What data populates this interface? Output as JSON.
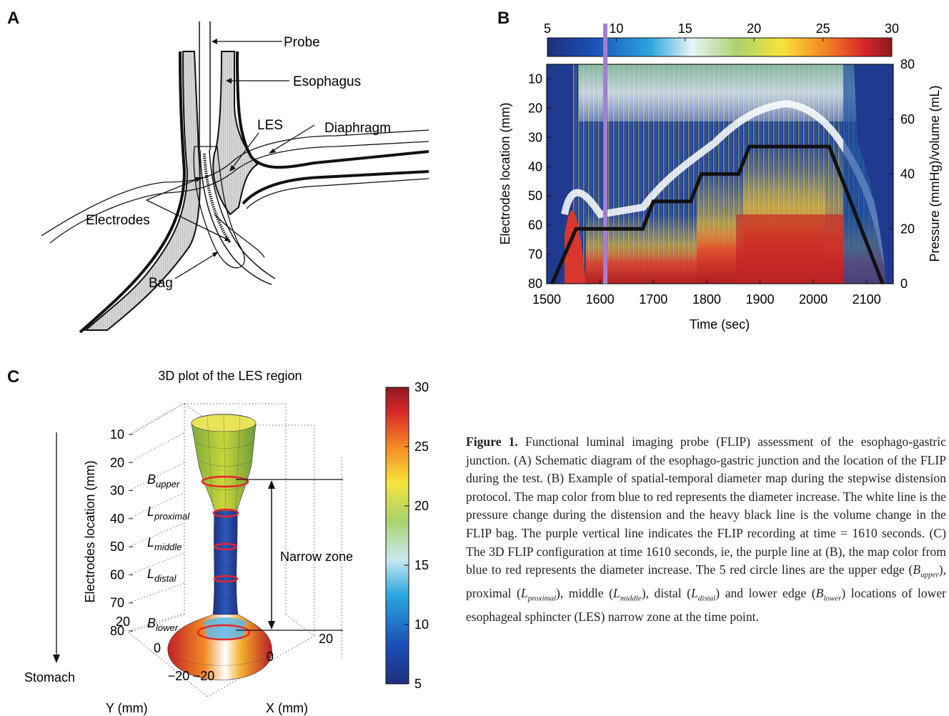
{
  "panels": {
    "a": "A",
    "b": "B",
    "c": "C"
  },
  "panel_a": {
    "labels": {
      "probe": "Probe",
      "esophagus": "Esophagus",
      "les": "LES",
      "diaphragm": "Diaphragm",
      "electrodes": "Electrodes",
      "bag": "Bag"
    }
  },
  "chart_data": [
    {
      "type": "heatmap",
      "panel": "B",
      "xlabel": "Time (sec)",
      "ylabel": "Electrodes location (mm)",
      "y2label": "Pressure (mmHg)/volume (mL)",
      "xlim": [
        1500,
        2150
      ],
      "ylim": [
        80,
        5
      ],
      "y2lim": [
        0,
        80
      ],
      "x_ticks": [
        "1500",
        "1600",
        "1700",
        "1800",
        "1900",
        "2000",
        "2100"
      ],
      "y_ticks": [
        "10",
        "20",
        "30",
        "40",
        "50",
        "60",
        "70",
        "80"
      ],
      "y2_ticks": [
        "0",
        "20",
        "40",
        "60",
        "80"
      ],
      "colorbar": {
        "range": [
          5,
          30
        ],
        "ticks": [
          "5",
          "10",
          "15",
          "20",
          "25",
          "30"
        ]
      },
      "marker_time": 1610,
      "volume_line": {
        "x": [
          1510,
          1555,
          1680,
          1700,
          1770,
          1790,
          1860,
          1880,
          2030,
          2130
        ],
        "y": [
          0,
          20,
          20,
          30,
          30,
          40,
          40,
          50,
          50,
          0
        ]
      }
    },
    {
      "type": "3d-surface",
      "panel": "C",
      "title": "3D plot of the LES region",
      "zlabel": "Electrodes location (mm)",
      "xlabel": "X (mm)",
      "ylabel": "Y (mm)",
      "z_ticks": [
        "10",
        "20",
        "30",
        "40",
        "50",
        "60",
        "70",
        "80"
      ],
      "x_ticks": [
        "−20",
        "0",
        "20"
      ],
      "y_ticks": [
        "−20",
        "0",
        "20"
      ],
      "colorbar": {
        "range": [
          5,
          30
        ],
        "ticks": [
          "5",
          "10",
          "15",
          "20",
          "25",
          "30"
        ]
      },
      "ring_labels": [
        {
          "main": "B",
          "sub": "upper"
        },
        {
          "main": "L",
          "sub": "proximal"
        },
        {
          "main": "L",
          "sub": "middle"
        },
        {
          "main": "L",
          "sub": "distal"
        },
        {
          "main": "B",
          "sub": "lower"
        }
      ],
      "annotations": {
        "narrow_zone": "Narrow zone",
        "stomach": "Stomach"
      }
    }
  ],
  "caption": {
    "label": "Figure 1.",
    "text": "Functional luminal imaging probe (FLIP) assessment of the esophago-gastric junction. (A) Schematic diagram of the esophago-gastric junction and the location of the FLIP during the test. (B) Example of spatial-temporal diameter map during the stepwise distension protocol. The map color from blue to red represents the diameter increase. The white line is the pressure change during the distension and the heavy black line is the volume change in the FLIP bag. The purple vertical line indicates the FLIP recording at time = 1610 seconds. (C) The 3D FLIP configuration at time 1610 seconds, ie, the purple line at (B), the map color from blue to red represents the diameter increase. The 5 red circle lines are the upper edge (B",
    "parts": [
      {
        "text": "Functional luminal imaging probe (FLIP) assessment of the esophago-gastric junction. (A) Schematic diagram of the esophago-gastric junction and the location of the FLIP during the test. (B) Example of spatial-temporal diameter map during the stepwise distension protocol. The map color from blue to red represents the diameter increase. The white line is the pressure change during the distension and the heavy black line is the volume change in the FLIP bag. The purple vertical line indicates the FLIP recording at time = 1610 seconds. (C) The 3D FLIP configuration at time 1610 seconds, ie, the purple line at (B), the map color from blue to red represents the diameter increase. The 5 red circle lines are the upper edge ("
      },
      {
        "it": "B",
        "sub": "upper"
      },
      {
        "text": "), proximal ("
      },
      {
        "it": "L",
        "sub": "proximal"
      },
      {
        "text": "), middle ("
      },
      {
        "it": "L",
        "sub": "middle"
      },
      {
        "text": "), distal ("
      },
      {
        "it": "L",
        "sub": "distal"
      },
      {
        "text": ") and lower edge ("
      },
      {
        "it": "B",
        "sub": "lower"
      },
      {
        "text": ") locations of lower esophageal sphincter (LES) narrow zone at the time point."
      }
    ]
  }
}
